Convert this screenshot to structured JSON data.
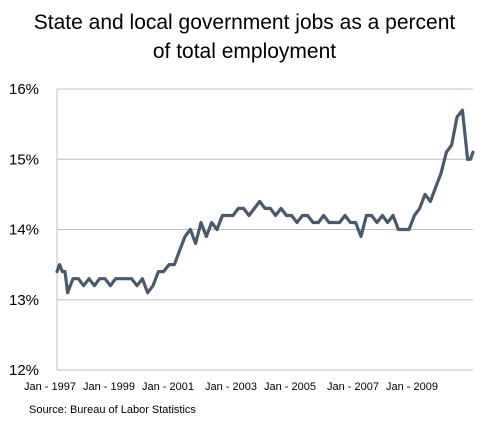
{
  "chart_data": {
    "type": "line",
    "title_lines": [
      "State and local government jobs as a percent",
      "of total employment"
    ],
    "source": "Source: Bureau of Labor Statistics",
    "ylim": [
      12,
      16
    ],
    "yticks": [
      "12%",
      "13%",
      "14%",
      "15%",
      "16%"
    ],
    "xtick_labels": [
      "Jan - 1997",
      "Jan - 1999",
      "Jan - 2001",
      "Jan - 2003",
      "Jan - 2005",
      "Jan - 2007",
      "Jan - 2009"
    ],
    "xlim": [
      1997.0,
      2010.0
    ],
    "grid": true,
    "line_color": "#4a5a6c",
    "series": [
      {
        "x": [
          1997.0,
          1997.08,
          1997.17,
          1997.25,
          1997.33,
          1997.5,
          1997.67,
          1997.83,
          1998.0,
          1998.17,
          1998.33,
          1998.5,
          1998.67,
          1998.83,
          1999.0,
          1999.17,
          1999.33,
          1999.5,
          1999.67,
          1999.83,
          2000.0,
          2000.17,
          2000.33,
          2000.5,
          2000.67,
          2000.83,
          2001.0,
          2001.17,
          2001.33,
          2001.5,
          2001.67,
          2001.83,
          2002.0,
          2002.17,
          2002.33,
          2002.5,
          2002.67,
          2002.83,
          2003.0,
          2003.17,
          2003.33,
          2003.5,
          2003.67,
          2003.83,
          2004.0,
          2004.17,
          2004.33,
          2004.5,
          2004.67,
          2004.83,
          2005.0,
          2005.17,
          2005.33,
          2005.5,
          2005.67,
          2005.83,
          2006.0,
          2006.17,
          2006.33,
          2006.5,
          2006.67,
          2006.83,
          2007.0,
          2007.17,
          2007.33,
          2007.5,
          2007.67,
          2007.83,
          2008.0,
          2008.17,
          2008.33,
          2008.5,
          2008.67,
          2008.83,
          2009.0,
          2009.17,
          2009.33,
          2009.5,
          2009.67,
          2009.83,
          2009.92,
          2010.0
        ],
        "y": [
          13.4,
          13.5,
          13.4,
          13.4,
          13.1,
          13.3,
          13.3,
          13.2,
          13.3,
          13.2,
          13.3,
          13.3,
          13.2,
          13.3,
          13.3,
          13.3,
          13.3,
          13.2,
          13.3,
          13.1,
          13.2,
          13.4,
          13.4,
          13.5,
          13.5,
          13.7,
          13.9,
          14.0,
          13.8,
          14.1,
          13.9,
          14.1,
          14.0,
          14.2,
          14.2,
          14.2,
          14.3,
          14.3,
          14.2,
          14.3,
          14.4,
          14.3,
          14.3,
          14.2,
          14.3,
          14.2,
          14.2,
          14.1,
          14.2,
          14.2,
          14.1,
          14.1,
          14.2,
          14.1,
          14.1,
          14.1,
          14.2,
          14.1,
          14.1,
          13.9,
          14.2,
          14.2,
          14.1,
          14.2,
          14.1,
          14.2,
          14.0,
          14.0,
          14.0,
          14.2,
          14.3,
          14.5,
          14.4,
          14.6,
          14.8,
          15.1,
          15.2,
          15.6,
          15.7,
          15.0,
          15.0,
          15.1
        ]
      }
    ]
  }
}
